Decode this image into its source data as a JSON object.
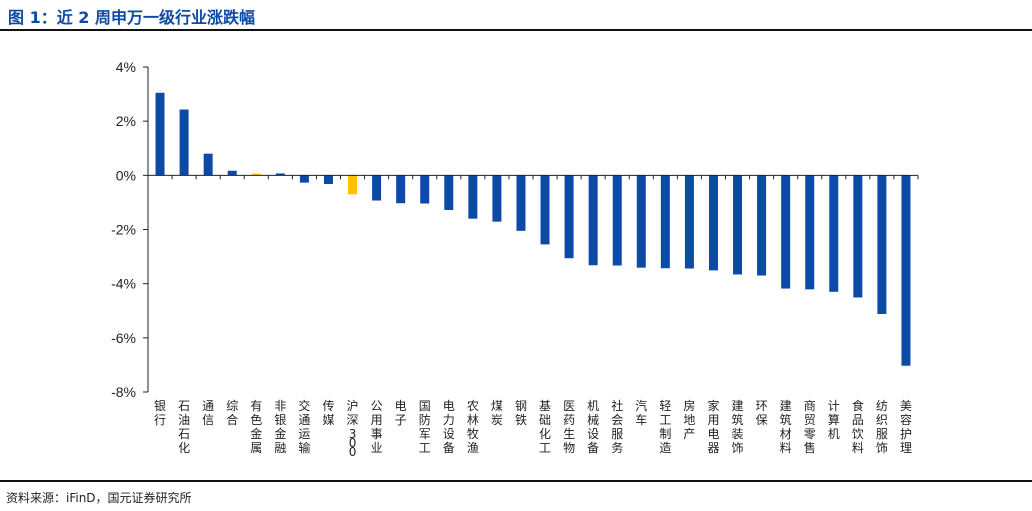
{
  "header": {
    "title": "图 1：近 2 周申万一级行业涨跌幅"
  },
  "footer": {
    "source": "资料来源：iFinD，国元证券研究所"
  },
  "chart_data": {
    "type": "bar",
    "title": "",
    "xlabel": "",
    "ylabel": "",
    "ylim": [
      -8,
      4
    ],
    "yticks": [
      "4%",
      "2%",
      "0%",
      "-2%",
      "-4%",
      "-6%",
      "-8%"
    ],
    "grid": false,
    "colors": {
      "default": "#0d4aa6",
      "highlight": "#ffc000",
      "axis": "#222222"
    },
    "highlight_categories": [
      "有色金属",
      "沪深300"
    ],
    "categories": [
      "银行",
      "石油石化",
      "通信",
      "综合",
      "有色金属",
      "非银金融",
      "交通运输",
      "传媒",
      "沪深300",
      "公用事业",
      "电子",
      "国防军工",
      "电力设备",
      "农林牧渔",
      "煤炭",
      "钢铁",
      "基础化工",
      "医药生物",
      "机械设备",
      "社会服务",
      "汽车",
      "轻工制造",
      "房地产",
      "家用电器",
      "建筑装饰",
      "环保",
      "建筑材料",
      "商贸零售",
      "计算机",
      "食品饮料",
      "纺织服饰",
      "美容护理"
    ],
    "values": [
      3.05,
      2.43,
      0.8,
      0.17,
      0.06,
      0.07,
      -0.27,
      -0.32,
      -0.7,
      -0.93,
      -1.03,
      -1.04,
      -1.28,
      -1.6,
      -1.71,
      -2.05,
      -2.55,
      -3.06,
      -3.32,
      -3.33,
      -3.41,
      -3.43,
      -3.44,
      -3.51,
      -3.66,
      -3.7,
      -4.18,
      -4.21,
      -4.3,
      -4.51,
      -5.12,
      -7.03
    ]
  }
}
